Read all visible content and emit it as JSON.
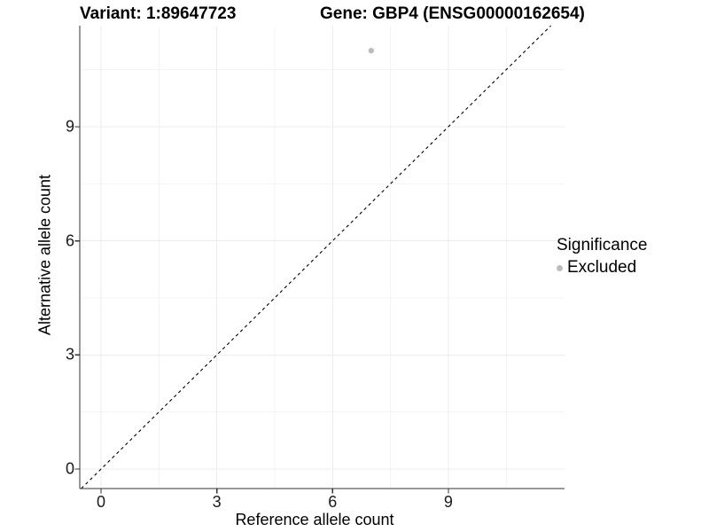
{
  "chart_data": {
    "type": "scatter",
    "title_left": "Variant: 1:89647723",
    "title_right": "Gene: GBP4 (ENSG00000162654)",
    "xlabel": "Reference allele count",
    "ylabel": "Alternative allele count",
    "x_ticks": [
      0,
      3,
      6,
      9
    ],
    "y_ticks": [
      0,
      3,
      6,
      9
    ],
    "x_minor_ticks": [
      1.5,
      4.5,
      7.5,
      10.5
    ],
    "y_minor_ticks": [
      1.5,
      4.5,
      7.5,
      10.5
    ],
    "xlim": [
      -0.55,
      12.0
    ],
    "ylim": [
      -0.51,
      11.66
    ],
    "grid": true,
    "points": [
      {
        "x": 7,
        "y": 11,
        "significance": "Excluded"
      }
    ],
    "reference_line": {
      "kind": "identity",
      "slope": 1,
      "intercept": 0,
      "style": "dashed",
      "color": "#000000"
    },
    "legend": {
      "title": "Significance",
      "position": "right",
      "entries": [
        {
          "label": "Excluded",
          "color": "#BCBCBC",
          "marker": "circle"
        }
      ]
    },
    "colors": {
      "point": "#BCBCBC",
      "grid_major": "#ECECEC",
      "grid_minor": "#F4F4F4",
      "axis_line": "#333333",
      "background": "#FFFFFF"
    }
  }
}
